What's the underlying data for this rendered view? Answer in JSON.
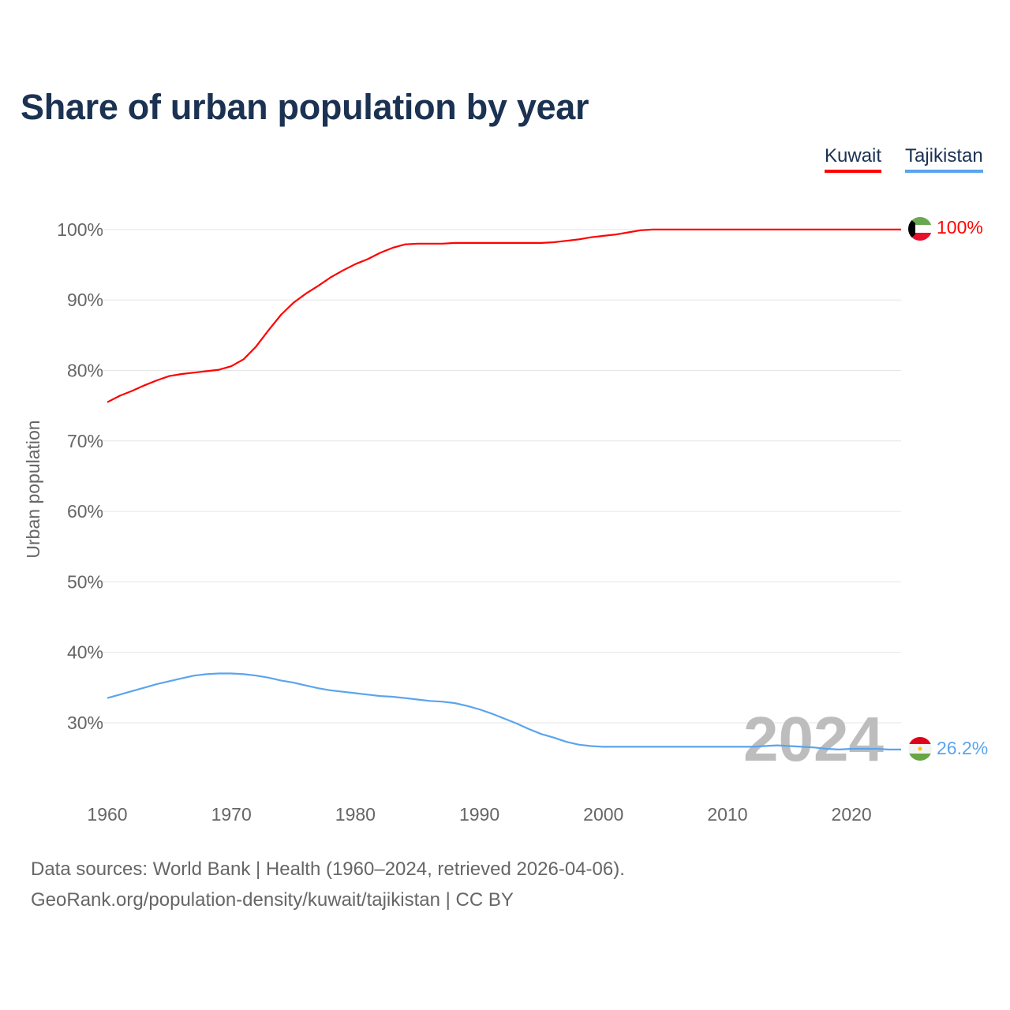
{
  "title": "Share of urban population by year",
  "legend": [
    {
      "label": "Kuwait",
      "color": "#ff0000"
    },
    {
      "label": "Tajikistan",
      "color": "#5ba4ee"
    }
  ],
  "year_watermark": "2024",
  "footer": {
    "line1": "Data sources: World Bank | Health (1960–2024, retrieved 2026-04-06).",
    "line2": "GeoRank.org/population-density/kuwait/tajikistan | CC BY"
  },
  "chart_data": {
    "type": "line",
    "title": "Share of urban population by year",
    "xlabel": "",
    "ylabel": "Urban population",
    "xlim": [
      1960,
      2024
    ],
    "ylim": [
      20,
      100
    ],
    "x_ticks": [
      "1960",
      "1970",
      "1980",
      "1990",
      "2000",
      "2010",
      "2020"
    ],
    "y_ticks": [
      "30%",
      "40%",
      "50%",
      "60%",
      "70%",
      "80%",
      "90%",
      "100%"
    ],
    "grid": true,
    "legend_position": "top-right",
    "x": [
      1960,
      1961,
      1962,
      1963,
      1964,
      1965,
      1966,
      1967,
      1968,
      1969,
      1970,
      1971,
      1972,
      1973,
      1974,
      1975,
      1976,
      1977,
      1978,
      1979,
      1980,
      1981,
      1982,
      1983,
      1984,
      1985,
      1986,
      1987,
      1988,
      1989,
      1990,
      1991,
      1992,
      1993,
      1994,
      1995,
      1996,
      1997,
      1998,
      1999,
      2000,
      2001,
      2002,
      2003,
      2004,
      2005,
      2006,
      2007,
      2008,
      2009,
      2010,
      2011,
      2012,
      2013,
      2014,
      2015,
      2016,
      2017,
      2018,
      2019,
      2020,
      2021,
      2022,
      2023,
      2024
    ],
    "series": [
      {
        "name": "Kuwait",
        "end_label": "100%",
        "values": [
          75.5,
          76.4,
          77.1,
          77.9,
          78.6,
          79.2,
          79.5,
          79.7,
          79.9,
          80.1,
          80.6,
          81.6,
          83.4,
          85.7,
          87.9,
          89.6,
          90.9,
          92.0,
          93.2,
          94.2,
          95.1,
          95.8,
          96.7,
          97.4,
          97.9,
          98.0,
          98.0,
          98.0,
          98.1,
          98.1,
          98.1,
          98.1,
          98.1,
          98.1,
          98.1,
          98.1,
          98.2,
          98.4,
          98.6,
          98.9,
          99.1,
          99.3,
          99.6,
          99.9,
          100,
          100,
          100,
          100,
          100,
          100,
          100,
          100,
          100,
          100,
          100,
          100,
          100,
          100,
          100,
          100,
          100,
          100,
          100,
          100,
          100
        ]
      },
      {
        "name": "Tajikistan",
        "end_label": "26.2%",
        "values": [
          33.5,
          34.0,
          34.5,
          35.0,
          35.5,
          35.9,
          36.3,
          36.7,
          36.9,
          37.0,
          37.0,
          36.9,
          36.7,
          36.4,
          36.0,
          35.7,
          35.3,
          34.9,
          34.6,
          34.4,
          34.2,
          34.0,
          33.8,
          33.7,
          33.5,
          33.3,
          33.1,
          33.0,
          32.8,
          32.4,
          31.9,
          31.3,
          30.6,
          29.9,
          29.1,
          28.4,
          27.9,
          27.3,
          26.9,
          26.7,
          26.6,
          26.6,
          26.6,
          26.6,
          26.6,
          26.6,
          26.6,
          26.6,
          26.6,
          26.6,
          26.6,
          26.6,
          26.6,
          26.7,
          26.8,
          26.7,
          26.6,
          26.5,
          26.3,
          26.2,
          26.3,
          26.3,
          26.3,
          26.2,
          26.2
        ]
      }
    ]
  }
}
